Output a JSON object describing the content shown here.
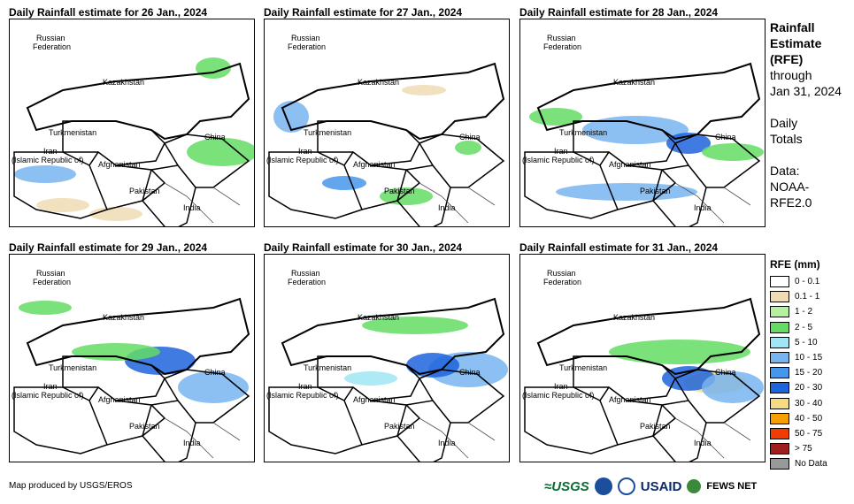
{
  "panels": [
    {
      "title": "Daily Rainfall estimate for 26 Jan., 2024"
    },
    {
      "title": "Daily Rainfall estimate for 27 Jan., 2024"
    },
    {
      "title": "Daily Rainfall estimate for 28 Jan., 2024"
    },
    {
      "title": "Daily Rainfall estimate for 29 Jan., 2024"
    },
    {
      "title": "Daily Rainfall estimate for 30 Jan., 2024"
    },
    {
      "title": "Daily Rainfall estimate for 31 Jan., 2024"
    }
  ],
  "map_labels": {
    "russia_1": "Russian",
    "russia_2": "Federation",
    "kazakhstan": "Kazakhstan",
    "turkmenistan": "Turkmenistan",
    "iran_1": "Iran",
    "iran_2": "(Islamic Republic of)",
    "afghanistan": "Afghanistan",
    "pakistan": "Pakistan",
    "china": "China",
    "india": "India"
  },
  "side": {
    "title_1": "Rainfall",
    "title_2": "Estimate",
    "title_3": "(RFE)",
    "through_1": "through",
    "through_2": "Jan 31, 2024",
    "daily_1": "Daily",
    "daily_2": "Totals",
    "data_1": "Data:",
    "data_2": "NOAA-",
    "data_3": "RFE2.0"
  },
  "legend": {
    "title": "RFE (mm)",
    "items": [
      {
        "label": "0 - 0.1",
        "color": "#ffffff"
      },
      {
        "label": "0.1 - 1",
        "color": "#f0dcb4"
      },
      {
        "label": "1 - 2",
        "color": "#b4f0a0"
      },
      {
        "label": "2 - 5",
        "color": "#64dc64"
      },
      {
        "label": "5 - 10",
        "color": "#a0e6f5"
      },
      {
        "label": "10 - 15",
        "color": "#78b4f0"
      },
      {
        "label": "15 - 20",
        "color": "#4696eb"
      },
      {
        "label": "20 - 30",
        "color": "#1e64dc"
      },
      {
        "label": "30 - 40",
        "color": "#f5dc82"
      },
      {
        "label": "40 - 50",
        "color": "#f5a000"
      },
      {
        "label": "50 - 75",
        "color": "#f03c00"
      },
      {
        "label": "> 75",
        "color": "#a01e1e"
      },
      {
        "label": "No Data",
        "color": "#999999"
      }
    ]
  },
  "footer": {
    "credit": "Map produced by USGS/EROS"
  },
  "logos": {
    "usgs": "≈USGS",
    "usaid": "USAID",
    "fewsnet": "FEWS NET"
  }
}
